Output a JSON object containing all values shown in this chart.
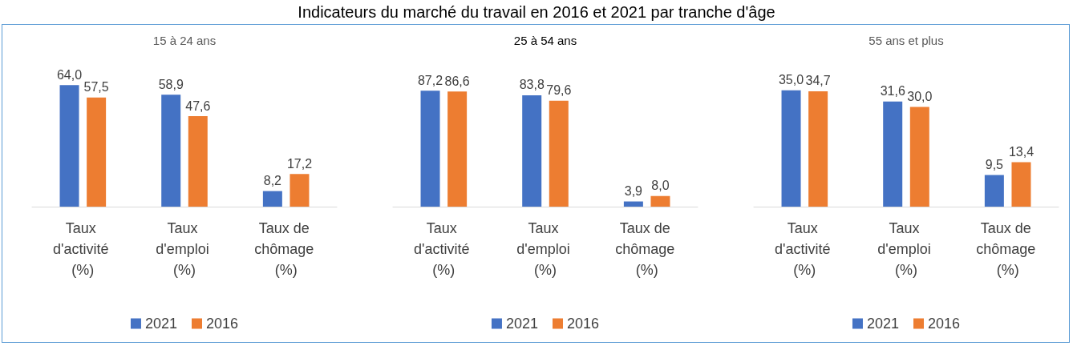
{
  "chart_data": [
    {
      "type": "other",
      "title": "Indicateurs du marché du travail en 2016 et 2021 par tranche d'âge"
    },
    {
      "type": "bar",
      "subtitle": "15 à 24 ans",
      "categories": [
        "Taux d'activité (%)",
        "Taux d'emploi (%)",
        "Taux de chômage (%)"
      ],
      "legend": "bottom",
      "series": [
        {
          "name": "2021",
          "color": "#4472c4",
          "values": [
            64.0,
            58.9,
            8.2
          ],
          "value_labels": [
            "64,0",
            "58,9",
            "8,2"
          ]
        },
        {
          "name": "2016",
          "color": "#ed7d31",
          "values": [
            57.5,
            47.6,
            17.2
          ],
          "value_labels": [
            "57,5",
            "47,6",
            "17,2"
          ]
        }
      ]
    },
    {
      "type": "bar",
      "subtitle": "25 à 54 ans",
      "categories": [
        "Taux d'activité (%)",
        "Taux d'emploi (%)",
        "Taux de chômage (%)"
      ],
      "legend": "bottom",
      "series": [
        {
          "name": "2021",
          "color": "#4472c4",
          "values": [
            87.2,
            83.8,
            3.9
          ],
          "value_labels": [
            "87,2",
            "83,8",
            "3,9"
          ]
        },
        {
          "name": "2016",
          "color": "#ed7d31",
          "values": [
            86.6,
            79.6,
            8.0
          ],
          "value_labels": [
            "86,6",
            "79,6",
            "8,0"
          ]
        }
      ]
    },
    {
      "type": "bar",
      "subtitle": "55 ans et plus",
      "categories": [
        "Taux d'activité (%)",
        "Taux d'emploi (%)",
        "Taux de chômage (%)"
      ],
      "legend": "bottom",
      "series": [
        {
          "name": "2021",
          "color": "#4472c4",
          "values": [
            35.0,
            31.6,
            9.5
          ],
          "value_labels": [
            "35,0",
            "31,6",
            "9,5"
          ]
        },
        {
          "name": "2016",
          "color": "#ed7d31",
          "values": [
            34.7,
            30.0,
            13.4
          ],
          "value_labels": [
            "34,7",
            "30,0",
            "13,4"
          ]
        }
      ]
    }
  ]
}
